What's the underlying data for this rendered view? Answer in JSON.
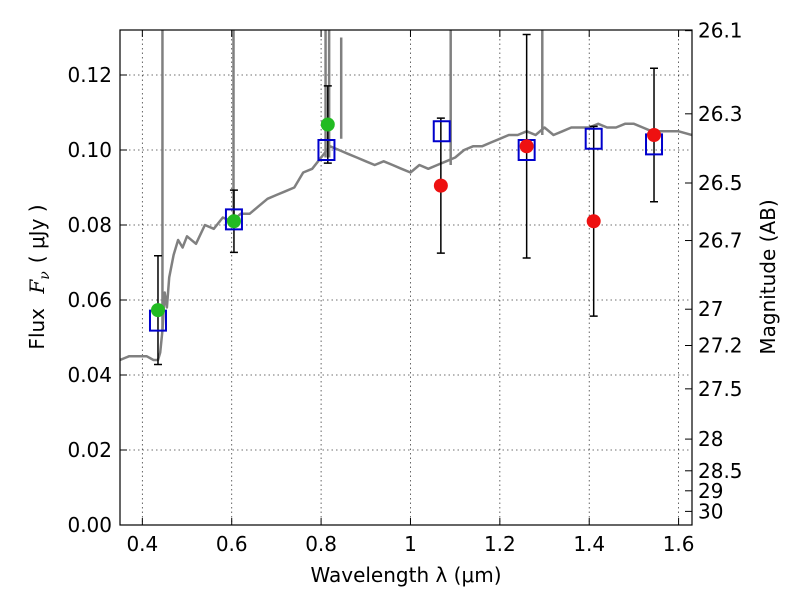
{
  "chart_data": {
    "type": "scatter",
    "title": "",
    "xlabel": "Wavelength  λ (μm)",
    "ylabel": "Flux  Fν (μJy)",
    "ylabel_parts": {
      "prefix": "Flux",
      "symbol": "F",
      "subscript": "ν",
      "units": "( μJy )"
    },
    "y2label": "Magnitude (AB)",
    "xlim": [
      0.35,
      1.63
    ],
    "ylim": [
      0.0,
      0.132
    ],
    "grid": true,
    "x_ticks": [
      0.4,
      0.6,
      0.8,
      1.0,
      1.2,
      1.4,
      1.6
    ],
    "x_tick_labels": [
      "0.4",
      "0.6",
      "0.8",
      "1",
      "1.2",
      "1.4",
      "1.6"
    ],
    "y_ticks": [
      0.0,
      0.02,
      0.04,
      0.06,
      0.08,
      0.1,
      0.12
    ],
    "y_tick_labels": [
      "0.00",
      "0.02",
      "0.04",
      "0.06",
      "0.08",
      "0.10",
      "0.12"
    ],
    "y2_ticks": [
      26.1,
      26.3,
      26.5,
      26.7,
      27,
      27.2,
      27.5,
      28,
      28.5,
      29,
      30
    ],
    "y2_tick_labels": [
      "26.1",
      "26.3",
      "26.5",
      "26.7",
      "27",
      "27.2",
      "27.5",
      "28",
      "28.5",
      "29",
      "30"
    ],
    "colors": {
      "template": "#808080",
      "model_box": "#0000cc",
      "optical_detection": "#22bb22",
      "nir_detection": "#ee1111",
      "errorbar": "#000000"
    },
    "series": [
      {
        "name": "SED template",
        "kind": "line",
        "x": [
          0.35,
          0.37,
          0.39,
          0.41,
          0.425,
          0.435,
          0.44,
          0.445,
          0.45,
          0.455,
          0.46,
          0.47,
          0.48,
          0.49,
          0.5,
          0.52,
          0.54,
          0.56,
          0.58,
          0.6,
          0.62,
          0.64,
          0.66,
          0.68,
          0.7,
          0.72,
          0.74,
          0.76,
          0.78,
          0.8,
          0.82,
          0.84,
          0.86,
          0.88,
          0.9,
          0.92,
          0.94,
          0.96,
          0.98,
          1.0,
          1.02,
          1.04,
          1.06,
          1.08,
          1.1,
          1.12,
          1.14,
          1.16,
          1.18,
          1.2,
          1.22,
          1.24,
          1.26,
          1.28,
          1.3,
          1.32,
          1.34,
          1.36,
          1.38,
          1.4,
          1.42,
          1.44,
          1.46,
          1.48,
          1.5,
          1.52,
          1.54,
          1.56,
          1.58,
          1.6,
          1.63
        ],
        "y": [
          0.044,
          0.045,
          0.045,
          0.045,
          0.044,
          0.044,
          0.046,
          0.052,
          0.062,
          0.058,
          0.066,
          0.072,
          0.076,
          0.074,
          0.077,
          0.075,
          0.08,
          0.079,
          0.082,
          0.081,
          0.083,
          0.083,
          0.085,
          0.087,
          0.088,
          0.089,
          0.09,
          0.094,
          0.095,
          0.098,
          0.101,
          0.1,
          0.099,
          0.098,
          0.097,
          0.096,
          0.097,
          0.096,
          0.095,
          0.094,
          0.096,
          0.095,
          0.096,
          0.097,
          0.098,
          0.1,
          0.101,
          0.101,
          0.102,
          0.103,
          0.104,
          0.104,
          0.105,
          0.104,
          0.106,
          0.104,
          0.105,
          0.106,
          0.106,
          0.106,
          0.107,
          0.106,
          0.106,
          0.107,
          0.107,
          0.106,
          0.105,
          0.105,
          0.105,
          0.105,
          0.104
        ]
      },
      {
        "name": "Emission lines",
        "kind": "spikes",
        "x": [
          0.445,
          0.604,
          0.81,
          0.818,
          0.845,
          1.09,
          1.295
        ],
        "base": [
          0.052,
          0.081,
          0.098,
          0.098,
          0.103,
          0.096,
          0.104
        ],
        "peak": [
          0.135,
          0.135,
          0.135,
          0.135,
          0.13,
          0.135,
          0.135
        ]
      },
      {
        "name": "Model photometry",
        "kind": "open-square",
        "x": [
          0.435,
          0.605,
          0.812,
          1.07,
          1.26,
          1.41,
          1.545
        ],
        "y": [
          0.0545,
          0.0815,
          0.1,
          0.105,
          0.1,
          0.103,
          0.1015
        ]
      },
      {
        "name": "Optical detections",
        "kind": "filled-circle",
        "x": [
          0.435,
          0.605,
          0.815
        ],
        "y": [
          0.0573,
          0.081,
          0.1068
        ],
        "yerr": [
          0.0145,
          0.0083,
          0.0103
        ]
      },
      {
        "name": "Near-IR detections",
        "kind": "filled-circle",
        "x": [
          1.068,
          1.26,
          1.41,
          1.545
        ],
        "y": [
          0.0905,
          0.101,
          0.081,
          0.104
        ],
        "yerr": [
          0.018,
          0.0298,
          0.0253,
          0.0178
        ]
      }
    ]
  }
}
